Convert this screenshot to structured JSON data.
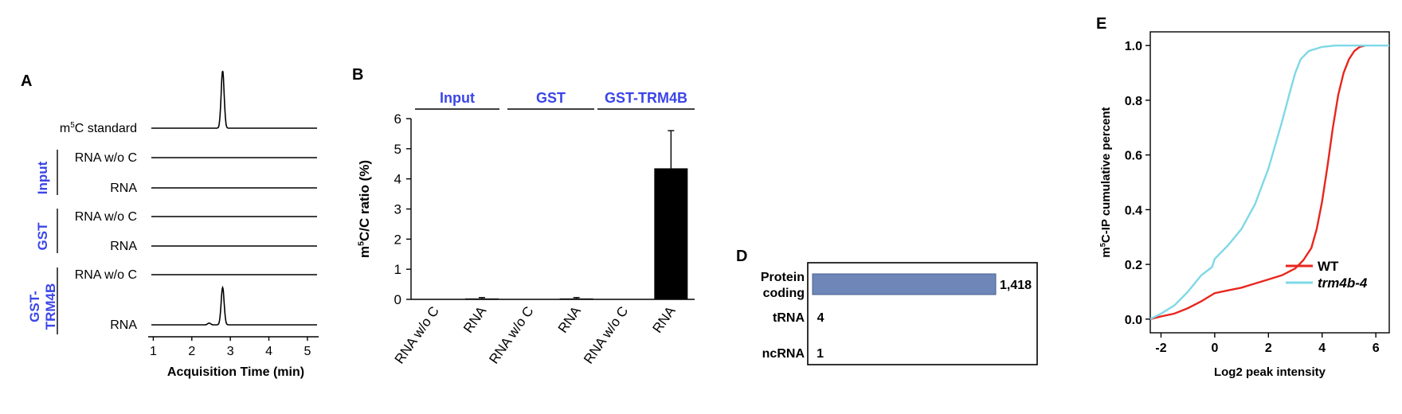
{
  "chart_data": [
    {
      "panel": "A",
      "type": "line",
      "xlabel": "Acquisition Time (min)",
      "xticks": [
        1,
        2,
        3,
        4,
        5
      ],
      "xlim": [
        0.95,
        5.25
      ],
      "traces": [
        {
          "label": "m5C standard",
          "peaks": [
            {
              "t": 2.8,
              "height": 1.0
            }
          ]
        },
        {
          "label": "RNA w/o C",
          "group": "Input",
          "peaks": []
        },
        {
          "label": "RNA",
          "group": "Input",
          "peaks": []
        },
        {
          "label": "RNA w/o C",
          "group": "GST",
          "peaks": []
        },
        {
          "label": "RNA",
          "group": "GST",
          "peaks": []
        },
        {
          "label": "RNA w/o C",
          "group": "GST-TRM4B",
          "peaks": []
        },
        {
          "label": "RNA",
          "group": "GST-TRM4B",
          "peaks": [
            {
              "t": 2.8,
              "height": 0.65
            },
            {
              "t": 2.45,
              "height": 0.03
            }
          ]
        }
      ],
      "groups": [
        {
          "label": "Input",
          "lines": [
            "Input"
          ]
        },
        {
          "label": "GST",
          "lines": [
            "GST"
          ]
        },
        {
          "label": "GST-TRM4B",
          "lines": [
            "GST-",
            "TRM4B"
          ]
        }
      ],
      "group_color": "#3b45e8"
    },
    {
      "panel": "B",
      "type": "bar",
      "ylabel": "m5C/C ratio (%)",
      "ylim": [
        0,
        6
      ],
      "yticks": [
        0,
        1,
        2,
        3,
        4,
        5,
        6
      ],
      "categories": [
        "RNA w/o C",
        "RNA",
        "RNA w/o C",
        "RNA",
        "RNA w/o C",
        "RNA"
      ],
      "values": [
        0,
        0.03,
        0,
        0.03,
        0,
        4.35
      ],
      "errors": [
        0,
        0.03,
        0,
        0.03,
        0,
        1.25
      ],
      "groups": [
        "Input",
        "GST",
        "GST-TRM4B"
      ],
      "bar_color": "#000000",
      "group_color": "#3b45e8"
    },
    {
      "panel": "D",
      "type": "bar",
      "orientation": "horizontal",
      "categories": [
        {
          "lines": [
            "Protein",
            "coding"
          ]
        },
        {
          "lines": [
            "tRNA"
          ]
        },
        {
          "lines": [
            "ncRNA"
          ]
        }
      ],
      "values": [
        1418,
        4,
        1
      ],
      "value_labels": [
        "1,418",
        "4",
        "1"
      ],
      "bar_color": "#6f87b8"
    },
    {
      "panel": "E",
      "type": "line",
      "xlabel": "Log2 peak intensity",
      "ylabel": "m5C-IP cumulative percent",
      "xlim": [
        -2.4,
        6.5
      ],
      "ylim": [
        -0.05,
        1.05
      ],
      "xticks": [
        -2,
        0,
        2,
        4,
        6
      ],
      "yticks": [
        "0.0",
        "0.2",
        "0.4",
        "0.6",
        "0.8",
        "1.0"
      ],
      "legend_position": "bottom-right",
      "series": [
        {
          "name": "WT",
          "color": "#e8261e",
          "x": [
            -2.4,
            -2,
            -1.5,
            -1,
            -0.5,
            0,
            0.5,
            1,
            1.5,
            2,
            2.5,
            3,
            3.3,
            3.6,
            3.8,
            4,
            4.2,
            4.4,
            4.6,
            4.8,
            5,
            5.2,
            5.4,
            5.6
          ],
          "y": [
            0,
            0.01,
            0.02,
            0.04,
            0.065,
            0.095,
            0.105,
            0.115,
            0.13,
            0.145,
            0.16,
            0.185,
            0.215,
            0.26,
            0.33,
            0.43,
            0.56,
            0.7,
            0.82,
            0.9,
            0.95,
            0.98,
            0.995,
            1.0
          ]
        },
        {
          "name": "trm4b-4",
          "color": "#7fd8e6",
          "x": [
            -2.4,
            -2,
            -1.5,
            -1,
            -0.5,
            -0.1,
            0,
            0.5,
            1,
            1.5,
            2,
            2.5,
            2.8,
            3,
            3.2,
            3.5,
            4,
            4.5,
            5,
            6,
            6.5
          ],
          "y": [
            0,
            0.02,
            0.05,
            0.1,
            0.16,
            0.19,
            0.22,
            0.27,
            0.33,
            0.42,
            0.55,
            0.72,
            0.83,
            0.9,
            0.95,
            0.98,
            0.995,
            1.0,
            1.0,
            1.0,
            1.0
          ]
        }
      ]
    }
  ]
}
